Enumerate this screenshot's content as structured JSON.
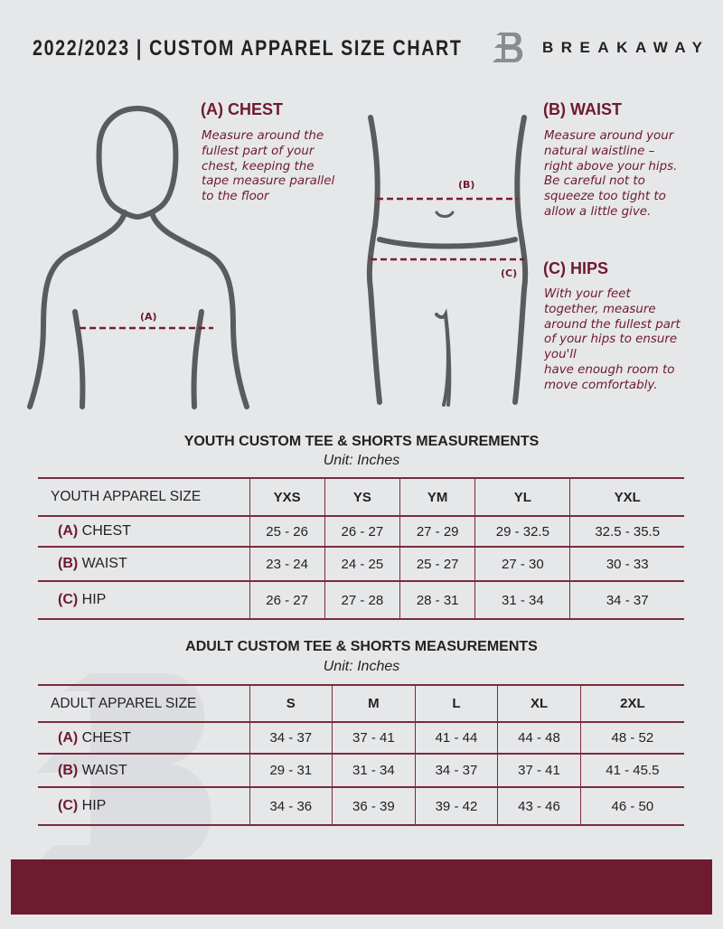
{
  "header": {
    "title": "2022/2023  |  CUSTOM APPAREL SIZE CHART",
    "brand": "BREAKAWAY"
  },
  "colors": {
    "accent": "#6e1a2f",
    "background": "#e6e7e9"
  },
  "guide": {
    "chest": {
      "heading": "(A) CHEST",
      "lines": [
        "Measure around the",
        "fullest part of your",
        "chest, keeping the",
        "tape measure parallel",
        "to the floor"
      ],
      "marker": "(A)"
    },
    "waist": {
      "heading": "(B) WAIST",
      "lines": [
        "Measure around your",
        "natural waistline –",
        "right above your hips.",
        "Be careful not to",
        "squeeze too tight to",
        "allow a little give."
      ],
      "marker": "(B)"
    },
    "hips": {
      "heading": "(C) HIPS",
      "lines": [
        "With your feet",
        "together, measure",
        "around the fullest part",
        "of your hips to ensure",
        "you'll",
        "have enough room to",
        "move comfortably."
      ],
      "marker": "(C)"
    }
  },
  "youth": {
    "title": "YOUTH CUSTOM TEE & SHORTS MEASUREMENTS",
    "unit": "Unit: Inches",
    "label": "YOUTH APPAREL SIZE",
    "sizes": [
      "YXS",
      "YS",
      "YM",
      "YL",
      "YXL"
    ],
    "rows": [
      {
        "letter": "(A)",
        "name": "CHEST",
        "values": [
          "25 - 26",
          "26 - 27",
          "27 - 29",
          "29 - 32.5",
          "32.5 - 35.5"
        ]
      },
      {
        "letter": "(B)",
        "name": "WAIST",
        "values": [
          "23 - 24",
          "24 - 25",
          "25 - 27",
          "27 - 30",
          "30 - 33"
        ]
      },
      {
        "letter": "(C)",
        "name": "HIP",
        "values": [
          "26 - 27",
          "27 - 28",
          "28 - 31",
          "31 - 34",
          "34 - 37"
        ]
      }
    ]
  },
  "adult": {
    "title": "ADULT CUSTOM TEE & SHORTS MEASUREMENTS",
    "unit": "Unit: Inches",
    "label": "ADULT APPAREL SIZE",
    "sizes": [
      "S",
      "M",
      "L",
      "XL",
      "2XL"
    ],
    "rows": [
      {
        "letter": "(A)",
        "name": "CHEST",
        "values": [
          "34 - 37",
          "37 - 41",
          "41 - 44",
          "44 - 48",
          "48 - 52"
        ]
      },
      {
        "letter": "(B)",
        "name": "WAIST",
        "values": [
          "29 - 31",
          "31 - 34",
          "34 - 37",
          "37 - 41",
          "41 - 45.5"
        ]
      },
      {
        "letter": "(C)",
        "name": "HIP",
        "values": [
          "34 - 36",
          "36 - 39",
          "39 - 42",
          "43 - 46",
          "46 - 50"
        ]
      }
    ]
  }
}
